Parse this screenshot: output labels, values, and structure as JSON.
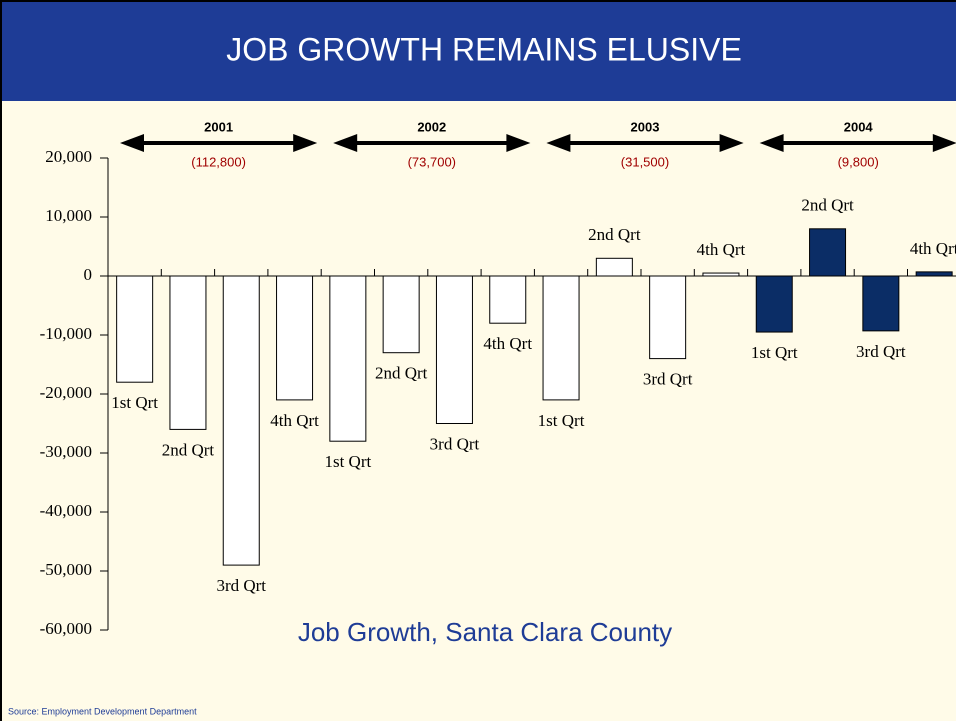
{
  "title": "JOB GROWTH REMAINS ELUSIVE",
  "source": "Source:  Employment Development Department",
  "chart_data": {
    "type": "bar",
    "title": "Job Growth, Santa Clara County",
    "categories": [
      "1st Qrt",
      "2nd Qrt",
      "3rd Qrt",
      "4th Qrt",
      "1st Qrt",
      "2nd Qrt",
      "3rd Qrt",
      "4th Qrt",
      "1st Qrt",
      "2nd Qrt",
      "3rd Qrt",
      "4th Qrt",
      "1st Qrt",
      "2nd Qrt",
      "3rd Qrt",
      "4th Qrt"
    ],
    "values": [
      -18000,
      -26000,
      -49000,
      -21000,
      -28000,
      -13000,
      -25000,
      -8000,
      -21000,
      3000,
      -14000,
      500,
      -9500,
      8000,
      -9300,
      700
    ],
    "colors": [
      "#ffffff",
      "#ffffff",
      "#ffffff",
      "#ffffff",
      "#ffffff",
      "#ffffff",
      "#ffffff",
      "#ffffff",
      "#ffffff",
      "#ffffff",
      "#ffffff",
      "#ffffff",
      "#0b2d66",
      "#0b2d66",
      "#0b2d66",
      "#0b2d66"
    ],
    "years": [
      {
        "year": "2001",
        "total": "(112,800)"
      },
      {
        "year": "2002",
        "total": "(73,700)"
      },
      {
        "year": "2003",
        "total": "(31,500)"
      },
      {
        "year": "2004",
        "total": "(9,800)"
      }
    ],
    "ylim": [
      -60000,
      20000
    ],
    "yticks": [
      {
        "value": 20000,
        "label": "20,000"
      },
      {
        "value": 10000,
        "label": "10,000"
      },
      0,
      {
        "value": -10000,
        "label": "-10,000"
      },
      {
        "value": -20000,
        "label": "-20,000"
      },
      {
        "value": -30000,
        "label": "-30,000"
      },
      {
        "value": -40000,
        "label": "-40,000"
      },
      {
        "value": -50000,
        "label": "-50,000"
      },
      {
        "value": -60000,
        "label": "-60,000"
      }
    ]
  }
}
